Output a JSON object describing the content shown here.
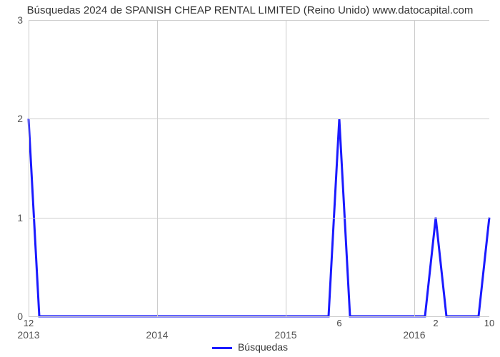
{
  "title": "Búsquedas 2024 de SPANISH CHEAP RENTAL LIMITED (Reino Unido) www.datocapital.com",
  "chart": {
    "type": "line",
    "background_color": "#ffffff",
    "grid_color": "#cccccc",
    "axis_color": "#666666",
    "text_color": "#555555",
    "title_fontsize": 15,
    "tick_fontsize": 14,
    "line_color": "#1a1aff",
    "line_width": 3,
    "ylim": [
      0,
      3
    ],
    "yticks": [
      0,
      1,
      2,
      3
    ],
    "x_index_min": 0,
    "x_index_max": 43,
    "x_grid_at": [
      0,
      12,
      24,
      36
    ],
    "x_year_labels": [
      {
        "x": 0,
        "text": "2013"
      },
      {
        "x": 12,
        "text": "2014"
      },
      {
        "x": 24,
        "text": "2015"
      },
      {
        "x": 36,
        "text": "2016"
      }
    ],
    "x_value_labels": [
      {
        "x": 0,
        "text": "12"
      },
      {
        "x": 29,
        "text": "6"
      },
      {
        "x": 38,
        "text": "2"
      },
      {
        "x": 43,
        "text": "10"
      }
    ],
    "series": {
      "name": "Búsquedas",
      "points": [
        {
          "x": 0,
          "y": 2
        },
        {
          "x": 1,
          "y": 0
        },
        {
          "x": 2,
          "y": 0
        },
        {
          "x": 3,
          "y": 0
        },
        {
          "x": 4,
          "y": 0
        },
        {
          "x": 5,
          "y": 0
        },
        {
          "x": 6,
          "y": 0
        },
        {
          "x": 7,
          "y": 0
        },
        {
          "x": 8,
          "y": 0
        },
        {
          "x": 9,
          "y": 0
        },
        {
          "x": 10,
          "y": 0
        },
        {
          "x": 11,
          "y": 0
        },
        {
          "x": 12,
          "y": 0
        },
        {
          "x": 13,
          "y": 0
        },
        {
          "x": 14,
          "y": 0
        },
        {
          "x": 15,
          "y": 0
        },
        {
          "x": 16,
          "y": 0
        },
        {
          "x": 17,
          "y": 0
        },
        {
          "x": 18,
          "y": 0
        },
        {
          "x": 19,
          "y": 0
        },
        {
          "x": 20,
          "y": 0
        },
        {
          "x": 21,
          "y": 0
        },
        {
          "x": 22,
          "y": 0
        },
        {
          "x": 23,
          "y": 0
        },
        {
          "x": 24,
          "y": 0
        },
        {
          "x": 25,
          "y": 0
        },
        {
          "x": 26,
          "y": 0
        },
        {
          "x": 27,
          "y": 0
        },
        {
          "x": 28,
          "y": 0
        },
        {
          "x": 29,
          "y": 2
        },
        {
          "x": 30,
          "y": 0
        },
        {
          "x": 31,
          "y": 0
        },
        {
          "x": 32,
          "y": 0
        },
        {
          "x": 33,
          "y": 0
        },
        {
          "x": 34,
          "y": 0
        },
        {
          "x": 35,
          "y": 0
        },
        {
          "x": 36,
          "y": 0
        },
        {
          "x": 37,
          "y": 0
        },
        {
          "x": 38,
          "y": 1
        },
        {
          "x": 39,
          "y": 0
        },
        {
          "x": 40,
          "y": 0
        },
        {
          "x": 41,
          "y": 0
        },
        {
          "x": 42,
          "y": 0
        },
        {
          "x": 43,
          "y": 1
        }
      ]
    },
    "legend": {
      "label": "Búsquedas"
    }
  }
}
